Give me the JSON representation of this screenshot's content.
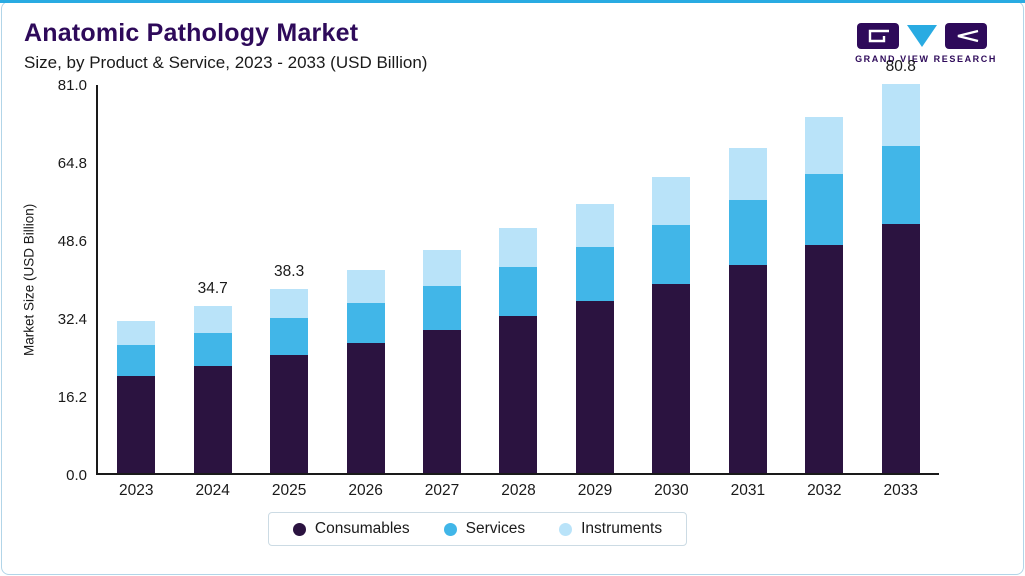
{
  "page": {
    "title": "Anatomic Pathology Market",
    "subtitle": "Size, by Product & Service, 2023 - 2033 (USD Billion)"
  },
  "brand": {
    "name": "GRAND VIEW RESEARCH"
  },
  "colors": {
    "accent": "#29abe2",
    "title": "#2e0a5a",
    "consumables": "#2b1340",
    "services": "#41b6e8",
    "instruments": "#b9e3f9",
    "axis": "#1a1a1a"
  },
  "chart_data": {
    "type": "bar",
    "stacked": true,
    "title": "Anatomic Pathology Market Size, by Product & Service, 2023 - 2033 (USD Billion)",
    "xlabel": "",
    "ylabel": "Market Size (USD Billion)",
    "ylim": [
      0,
      81.0
    ],
    "ytick_labels": [
      "0.0",
      "16.2",
      "32.4",
      "48.6",
      "64.8",
      "81.0"
    ],
    "grid": false,
    "legend_position": "bottom",
    "categories": [
      "2023",
      "2024",
      "2025",
      "2026",
      "2027",
      "2028",
      "2029",
      "2030",
      "2031",
      "2032",
      "2033"
    ],
    "series": [
      {
        "name": "Consumables",
        "color_key": "consumables",
        "values": [
          20.2,
          22.2,
          24.5,
          26.9,
          29.6,
          32.6,
          35.8,
          39.3,
          43.1,
          47.3,
          51.7
        ]
      },
      {
        "name": "Services",
        "color_key": "services",
        "values": [
          6.3,
          6.9,
          7.7,
          8.4,
          9.3,
          10.2,
          11.2,
          12.3,
          13.5,
          14.8,
          16.2
        ]
      },
      {
        "name": "Instruments",
        "color_key": "instruments",
        "values": [
          5.1,
          5.6,
          6.1,
          6.8,
          7.4,
          8.1,
          8.9,
          9.8,
          10.8,
          11.8,
          12.9
        ]
      }
    ],
    "totals": [
      31.6,
      34.7,
      38.3,
      42.1,
      46.3,
      50.9,
      55.9,
      61.4,
      67.4,
      73.9,
      80.8
    ],
    "bar_labels": {
      "2024": "34.7",
      "2025": "38.3",
      "2033": "80.8"
    }
  }
}
